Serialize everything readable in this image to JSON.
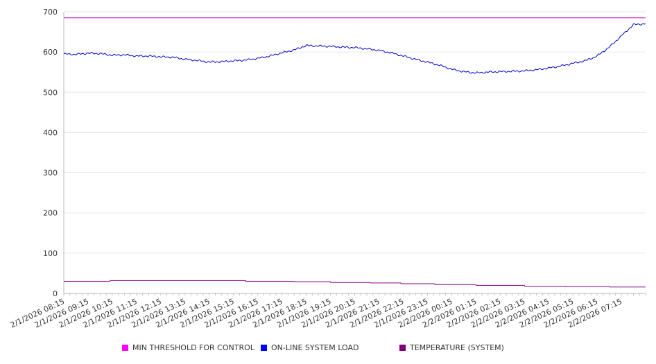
{
  "chart_data": {
    "type": "line",
    "title": "",
    "xlabel": "",
    "ylabel": "",
    "ylim": [
      0,
      700
    ],
    "yticks": [
      0,
      100,
      200,
      300,
      400,
      500,
      600,
      700
    ],
    "grid": "horizontal",
    "legend_position": "bottom",
    "x_range_hours": [
      0,
      24
    ],
    "x_tick_labels": [
      "2/1/2026 08:15",
      "2/1/2026 09:15",
      "2/1/2026 10:15",
      "2/1/2026 11:15",
      "2/1/2026 12:15",
      "2/1/2026 13:15",
      "2/1/2026 14:15",
      "2/1/2026 15:15",
      "2/1/2026 16:15",
      "2/1/2026 17:15",
      "2/1/2026 18:15",
      "2/1/2026 19:15",
      "2/1/2026 20:15",
      "2/1/2026 21:15",
      "2/1/2026 22:15",
      "2/1/2026 23:15",
      "2/2/2026 00:15",
      "2/2/2026 01:15",
      "2/2/2026 02:15",
      "2/2/2026 03:15",
      "2/2/2026 04:15",
      "2/2/2026 05:15",
      "2/2/2026 06:15",
      "2/2/2026 07:15"
    ],
    "series": [
      {
        "name": "MIN THRESHOLD FOR CONTROL",
        "color": "#cc00cc",
        "legend_color": "#ff00ff",
        "x": [
          0,
          24
        ],
        "values": [
          685,
          685
        ]
      },
      {
        "name": "ON-LINE SYSTEM LOAD",
        "color": "#0000cc",
        "legend_color": "#0000ff",
        "x": [
          0,
          0.5,
          1,
          1.5,
          2,
          2.5,
          3,
          3.5,
          4,
          4.5,
          5,
          5.5,
          6,
          6.5,
          7,
          7.5,
          8,
          8.5,
          9,
          9.5,
          10,
          10.5,
          11,
          11.5,
          12,
          12.5,
          13,
          13.5,
          14,
          14.5,
          15,
          15.5,
          16,
          16.5,
          17,
          17.5,
          18,
          18.5,
          19,
          19.5,
          20,
          20.5,
          21,
          21.5,
          22,
          22.5,
          23,
          23.5,
          24
        ],
        "values": [
          595,
          594,
          597,
          596,
          592,
          593,
          590,
          590,
          588,
          587,
          582,
          579,
          575,
          576,
          578,
          580,
          584,
          590,
          598,
          605,
          616,
          615,
          614,
          612,
          611,
          608,
          604,
          598,
          590,
          582,
          575,
          567,
          557,
          551,
          548,
          550,
          551,
          552,
          553,
          556,
          560,
          565,
          572,
          578,
          590,
          612,
          640,
          668,
          670
        ]
      },
      {
        "name": "TEMPERATURE (SYSTEM)",
        "color": "#800080",
        "legend_color": "#800080",
        "x": [
          0,
          1.9,
          1.91,
          7.5,
          7.51,
          9.5,
          9.51,
          11,
          11.01,
          12.6,
          12.61,
          13.9,
          13.91,
          15.3,
          15.31,
          17,
          17.01,
          19,
          19.01,
          20.7,
          20.71,
          22.5,
          22.51,
          24
        ],
        "values": [
          30,
          30,
          32,
          32,
          30,
          30,
          29,
          29,
          27,
          27,
          26,
          26,
          24,
          24,
          22,
          22,
          20,
          20,
          18,
          18,
          17,
          17,
          16,
          16
        ]
      }
    ]
  }
}
